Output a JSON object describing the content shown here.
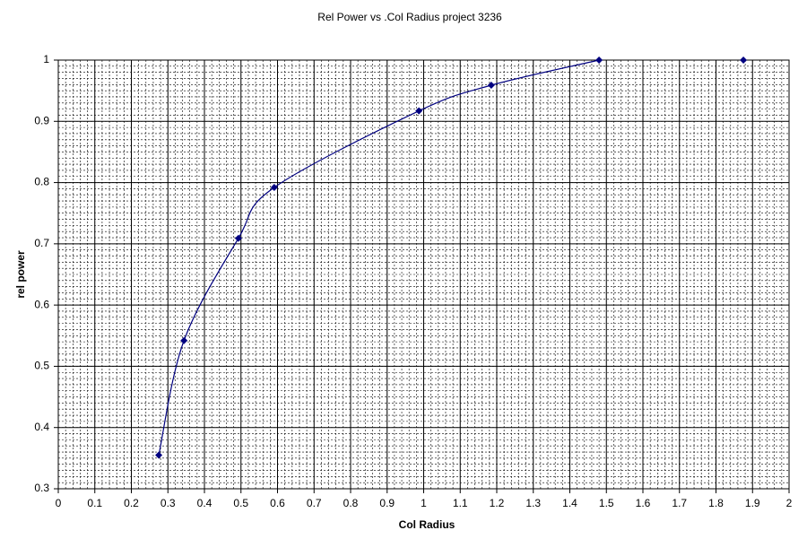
{
  "chart_data": {
    "type": "scatter",
    "title": "Rel Power vs .Col Radius project 3236",
    "x_label": "Col Radius",
    "y_label": "rel power",
    "xlim": [
      0,
      2
    ],
    "xticks": [
      0,
      0.1,
      0.2,
      0.3,
      0.4,
      0.5,
      0.6,
      0.7,
      0.8,
      0.9,
      1,
      1.1,
      1.2,
      1.3,
      1.4,
      1.5,
      1.6,
      1.7,
      1.8,
      1.9,
      2
    ],
    "ylim": [
      0.3,
      1
    ],
    "yticks": [
      0.3,
      0.4,
      0.5,
      0.6,
      0.7,
      0.8,
      0.9,
      1
    ],
    "grid": true,
    "x_minor_step": 0.02,
    "y_minor_step": 0.01,
    "series": [
      {
        "color": "#000080",
        "line": true,
        "smooth": true,
        "x": [
          0.275,
          0.344,
          0.493,
          0.591,
          0.987,
          1.185,
          1.48
        ],
        "values": [
          0.355,
          0.542,
          0.709,
          0.792,
          0.917,
          0.959,
          1.0
        ]
      },
      {
        "color": "#000080",
        "line": false,
        "x": [
          1.875
        ],
        "values": [
          1.0
        ]
      }
    ]
  }
}
